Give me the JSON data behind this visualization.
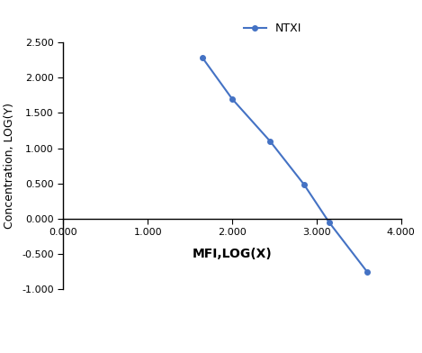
{
  "x": [
    1.65,
    2.0,
    2.45,
    2.85,
    3.15,
    3.6
  ],
  "y": [
    2.28,
    1.7,
    1.1,
    0.49,
    -0.05,
    -0.75
  ],
  "line_color": "#4472C4",
  "marker": "o",
  "marker_size": 4,
  "label": "NTXI",
  "xlabel": "MFI,LOG(X)",
  "ylabel": "Concentration, LOG(Y)",
  "xlim": [
    0.0,
    4.0
  ],
  "ylim": [
    -1.0,
    2.5
  ],
  "xticks": [
    0.0,
    1.0,
    2.0,
    3.0,
    4.0
  ],
  "yticks": [
    -1.0,
    -0.5,
    0.0,
    0.5,
    1.0,
    1.5,
    2.0,
    2.5
  ],
  "xlabel_fontsize": 10,
  "ylabel_fontsize": 9,
  "legend_fontsize": 9,
  "tick_fontsize": 8,
  "background_color": "#ffffff"
}
